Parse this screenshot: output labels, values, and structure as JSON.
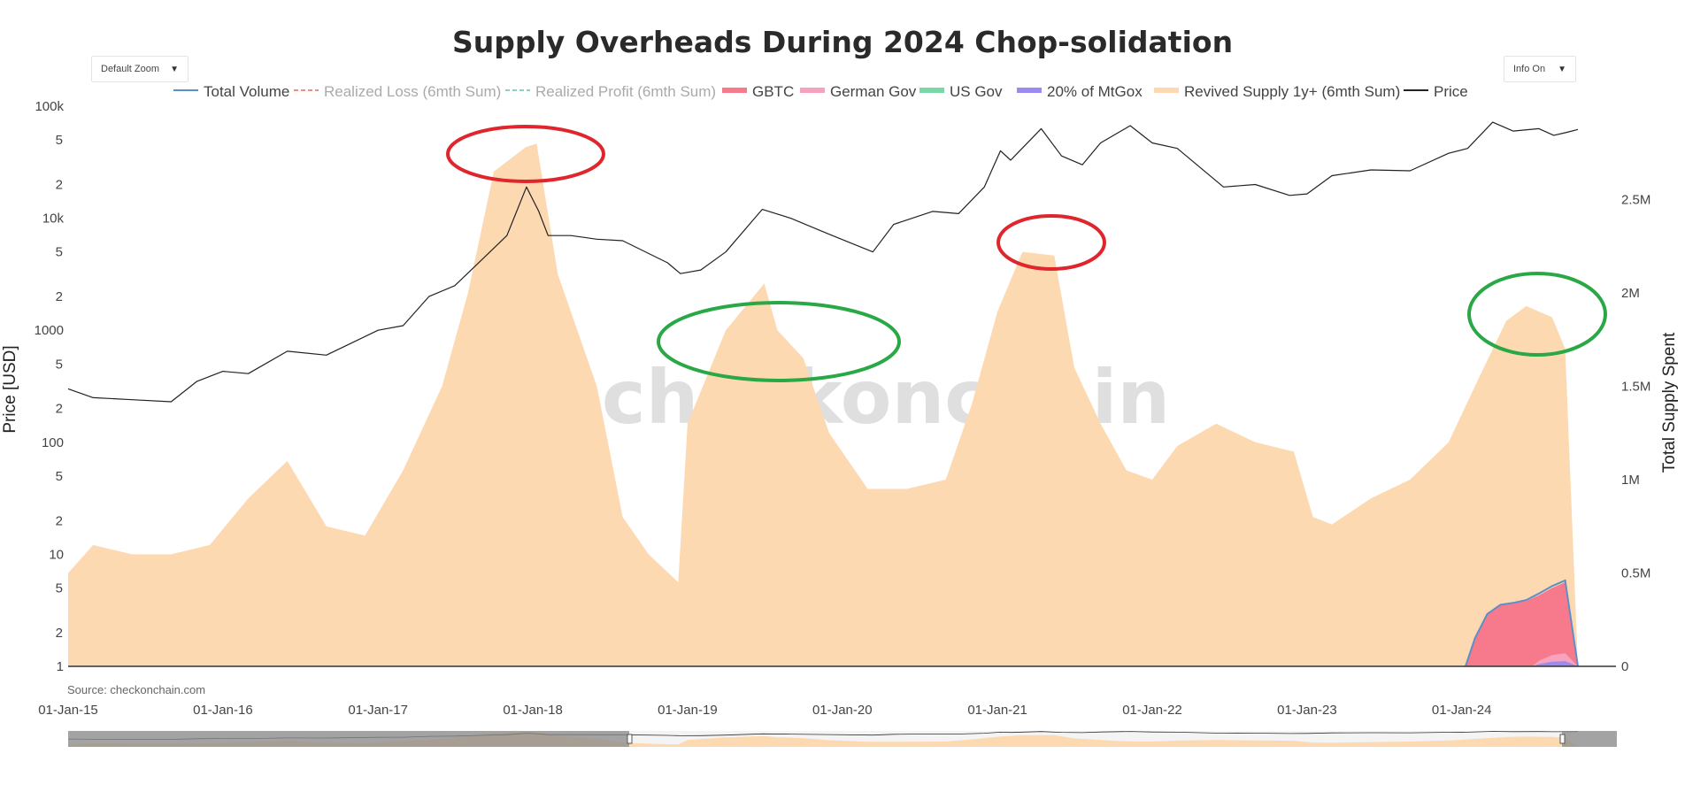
{
  "controls": {
    "zoom": {
      "label": "Default Zoom"
    },
    "info": {
      "label": "Info On"
    }
  },
  "source_text": "Source: checkonchain.com",
  "watermark": "_checkonchain",
  "chart_data": {
    "type": "area",
    "title": "Supply Overheads During 2024 Chop-solidation",
    "ylabel": "Price [USD]",
    "y2label": "Total Supply Spent",
    "yscale": "log",
    "ylim": [
      1,
      100000
    ],
    "y2lim": [
      0,
      3000000
    ],
    "xlim": [
      "2015-01-01",
      "2024-10-01"
    ],
    "x_ticks": [
      "01-Jan-15",
      "01-Jan-16",
      "01-Jan-17",
      "01-Jan-18",
      "01-Jan-19",
      "01-Jan-20",
      "01-Jan-21",
      "01-Jan-22",
      "01-Jan-23",
      "01-Jan-24"
    ],
    "y_ticks": [
      "100k",
      "5",
      "2",
      "10k",
      "5",
      "2",
      "1000",
      "5",
      "2",
      "100",
      "5",
      "2",
      "10",
      "5",
      "2",
      "1"
    ],
    "y2_ticks": [
      "2.5M",
      "2M",
      "1.5M",
      "1M",
      "0.5M",
      "0"
    ],
    "legend_position": "top",
    "legend": [
      {
        "name": "Total Volume",
        "color": "#5b8fc9",
        "style": "line",
        "active": true
      },
      {
        "name": "Realized Loss (6mth Sum)",
        "color": "#f08c8c",
        "style": "dash",
        "active": false
      },
      {
        "name": "Realized Profit (6mth Sum)",
        "color": "#7fd6c8",
        "style": "dash",
        "active": false
      },
      {
        "name": "GBTC",
        "color": "#f77a8c",
        "style": "fill",
        "active": true
      },
      {
        "name": "German Gov",
        "color": "#f6a3bd",
        "style": "fill",
        "active": true
      },
      {
        "name": "US Gov",
        "color": "#7ad7a8",
        "style": "fill",
        "active": true
      },
      {
        "name": "20% of MtGox",
        "color": "#9d8af0",
        "style": "fill",
        "active": true
      },
      {
        "name": "Revived Supply 1y+ (6mth Sum)",
        "color": "#fdd9b2",
        "style": "fill",
        "active": true
      },
      {
        "name": "Price",
        "color": "#222222",
        "style": "line",
        "active": true
      }
    ],
    "series": [
      {
        "name": "Price",
        "axis": "y",
        "x": [
          "2015-01-01",
          "2015-03-01",
          "2015-06-01",
          "2015-09-01",
          "2015-11-01",
          "2016-01-01",
          "2016-03-01",
          "2016-06-01",
          "2016-09-01",
          "2017-01-01",
          "2017-03-01",
          "2017-05-01",
          "2017-07-01",
          "2017-09-01",
          "2017-11-01",
          "2017-12-17",
          "2018-01-15",
          "2018-02-06",
          "2018-04-01",
          "2018-06-01",
          "2018-08-01",
          "2018-11-15",
          "2018-12-15",
          "2019-02-01",
          "2019-04-01",
          "2019-06-26",
          "2019-09-01",
          "2019-12-01",
          "2020-03-13",
          "2020-05-01",
          "2020-08-01",
          "2020-10-01",
          "2020-12-01",
          "2021-01-08",
          "2021-02-01",
          "2021-04-14",
          "2021-06-01",
          "2021-07-20",
          "2021-09-01",
          "2021-11-10",
          "2022-01-01",
          "2022-03-01",
          "2022-06-18",
          "2022-09-01",
          "2022-11-21",
          "2023-01-01",
          "2023-03-01",
          "2023-06-01",
          "2023-09-01",
          "2023-12-01",
          "2024-01-15",
          "2024-03-14",
          "2024-05-01",
          "2024-07-01",
          "2024-08-05",
          "2024-09-01",
          "2024-10-01"
        ],
        "values": [
          300,
          250,
          240,
          230,
          350,
          430,
          410,
          650,
          600,
          1000,
          1100,
          2000,
          2500,
          4200,
          7000,
          19000,
          11500,
          7000,
          7000,
          6500,
          6300,
          4000,
          3200,
          3450,
          5000,
          12000,
          10000,
          7200,
          5000,
          8800,
          11500,
          11000,
          19000,
          40000,
          33000,
          63000,
          36000,
          30000,
          47000,
          67000,
          47000,
          42000,
          19000,
          20000,
          16000,
          16500,
          24000,
          27000,
          26500,
          38000,
          42000,
          72000,
          60000,
          63000,
          55000,
          58000,
          62000
        ]
      },
      {
        "name": "Revived Supply 1y+ (6mth Sum)",
        "axis": "y2",
        "x": [
          "2015-01-01",
          "2015-03-01",
          "2015-06-01",
          "2015-09-01",
          "2015-12-01",
          "2016-03-01",
          "2016-06-01",
          "2016-09-01",
          "2016-12-01",
          "2017-03-01",
          "2017-06-01",
          "2017-08-01",
          "2017-10-01",
          "2017-12-15",
          "2018-01-10",
          "2018-03-01",
          "2018-06-01",
          "2018-08-01",
          "2018-10-01",
          "2018-12-10",
          "2019-01-01",
          "2019-04-01",
          "2019-07-01",
          "2019-08-01",
          "2019-10-01",
          "2019-12-01",
          "2020-03-01",
          "2020-06-01",
          "2020-09-01",
          "2020-11-01",
          "2021-01-01",
          "2021-03-01",
          "2021-05-15",
          "2021-07-01",
          "2021-09-01",
          "2021-11-01",
          "2022-01-01",
          "2022-03-01",
          "2022-06-01",
          "2022-09-01",
          "2022-12-01",
          "2023-01-15",
          "2023-03-01",
          "2023-06-01",
          "2023-09-01",
          "2023-12-01",
          "2024-02-01",
          "2024-04-15",
          "2024-06-01",
          "2024-07-01",
          "2024-08-01",
          "2024-09-01",
          "2024-10-01"
        ],
        "values": [
          500000,
          650000,
          600000,
          600000,
          650000,
          900000,
          1100000,
          750000,
          700000,
          1050000,
          1500000,
          2000000,
          2650000,
          2780000,
          2800000,
          2100000,
          1500000,
          800000,
          600000,
          450000,
          1300000,
          1800000,
          2050000,
          1800000,
          1650000,
          1250000,
          950000,
          950000,
          1000000,
          1400000,
          1900000,
          2220000,
          2200000,
          1600000,
          1300000,
          1050000,
          1000000,
          1180000,
          1300000,
          1200000,
          1150000,
          800000,
          760000,
          900000,
          1000000,
          1200000,
          1500000,
          1850000,
          1930000,
          1900000,
          1870000,
          1700000,
          0
        ]
      },
      {
        "name": "GBTC",
        "axis": "y2",
        "x": [
          "2024-01-10",
          "2024-02-01",
          "2024-03-01",
          "2024-04-01",
          "2024-05-01",
          "2024-06-01",
          "2024-07-01",
          "2024-08-01",
          "2024-09-01",
          "2024-10-01"
        ],
        "values": [
          0,
          150000,
          280000,
          330000,
          340000,
          350000,
          380000,
          420000,
          450000,
          0
        ]
      },
      {
        "name": "Total Volume",
        "axis": "y2",
        "x": [
          "2024-01-10",
          "2024-02-01",
          "2024-03-01",
          "2024-04-01",
          "2024-05-01",
          "2024-06-01",
          "2024-07-01",
          "2024-08-01",
          "2024-09-01",
          "2024-10-01"
        ],
        "values": [
          0,
          150000,
          280000,
          330000,
          340000,
          355000,
          390000,
          430000,
          460000,
          0
        ]
      },
      {
        "name": "German Gov",
        "axis": "y2",
        "x": [
          "2024-06-15",
          "2024-07-01",
          "2024-08-01",
          "2024-09-01",
          "2024-10-01"
        ],
        "values": [
          0,
          30000,
          60000,
          70000,
          0
        ]
      },
      {
        "name": "20% of MtGox",
        "axis": "y2",
        "x": [
          "2024-06-15",
          "2024-07-01",
          "2024-08-01",
          "2024-09-01",
          "2024-10-01"
        ],
        "values": [
          0,
          12000,
          25000,
          28000,
          0
        ]
      }
    ]
  }
}
